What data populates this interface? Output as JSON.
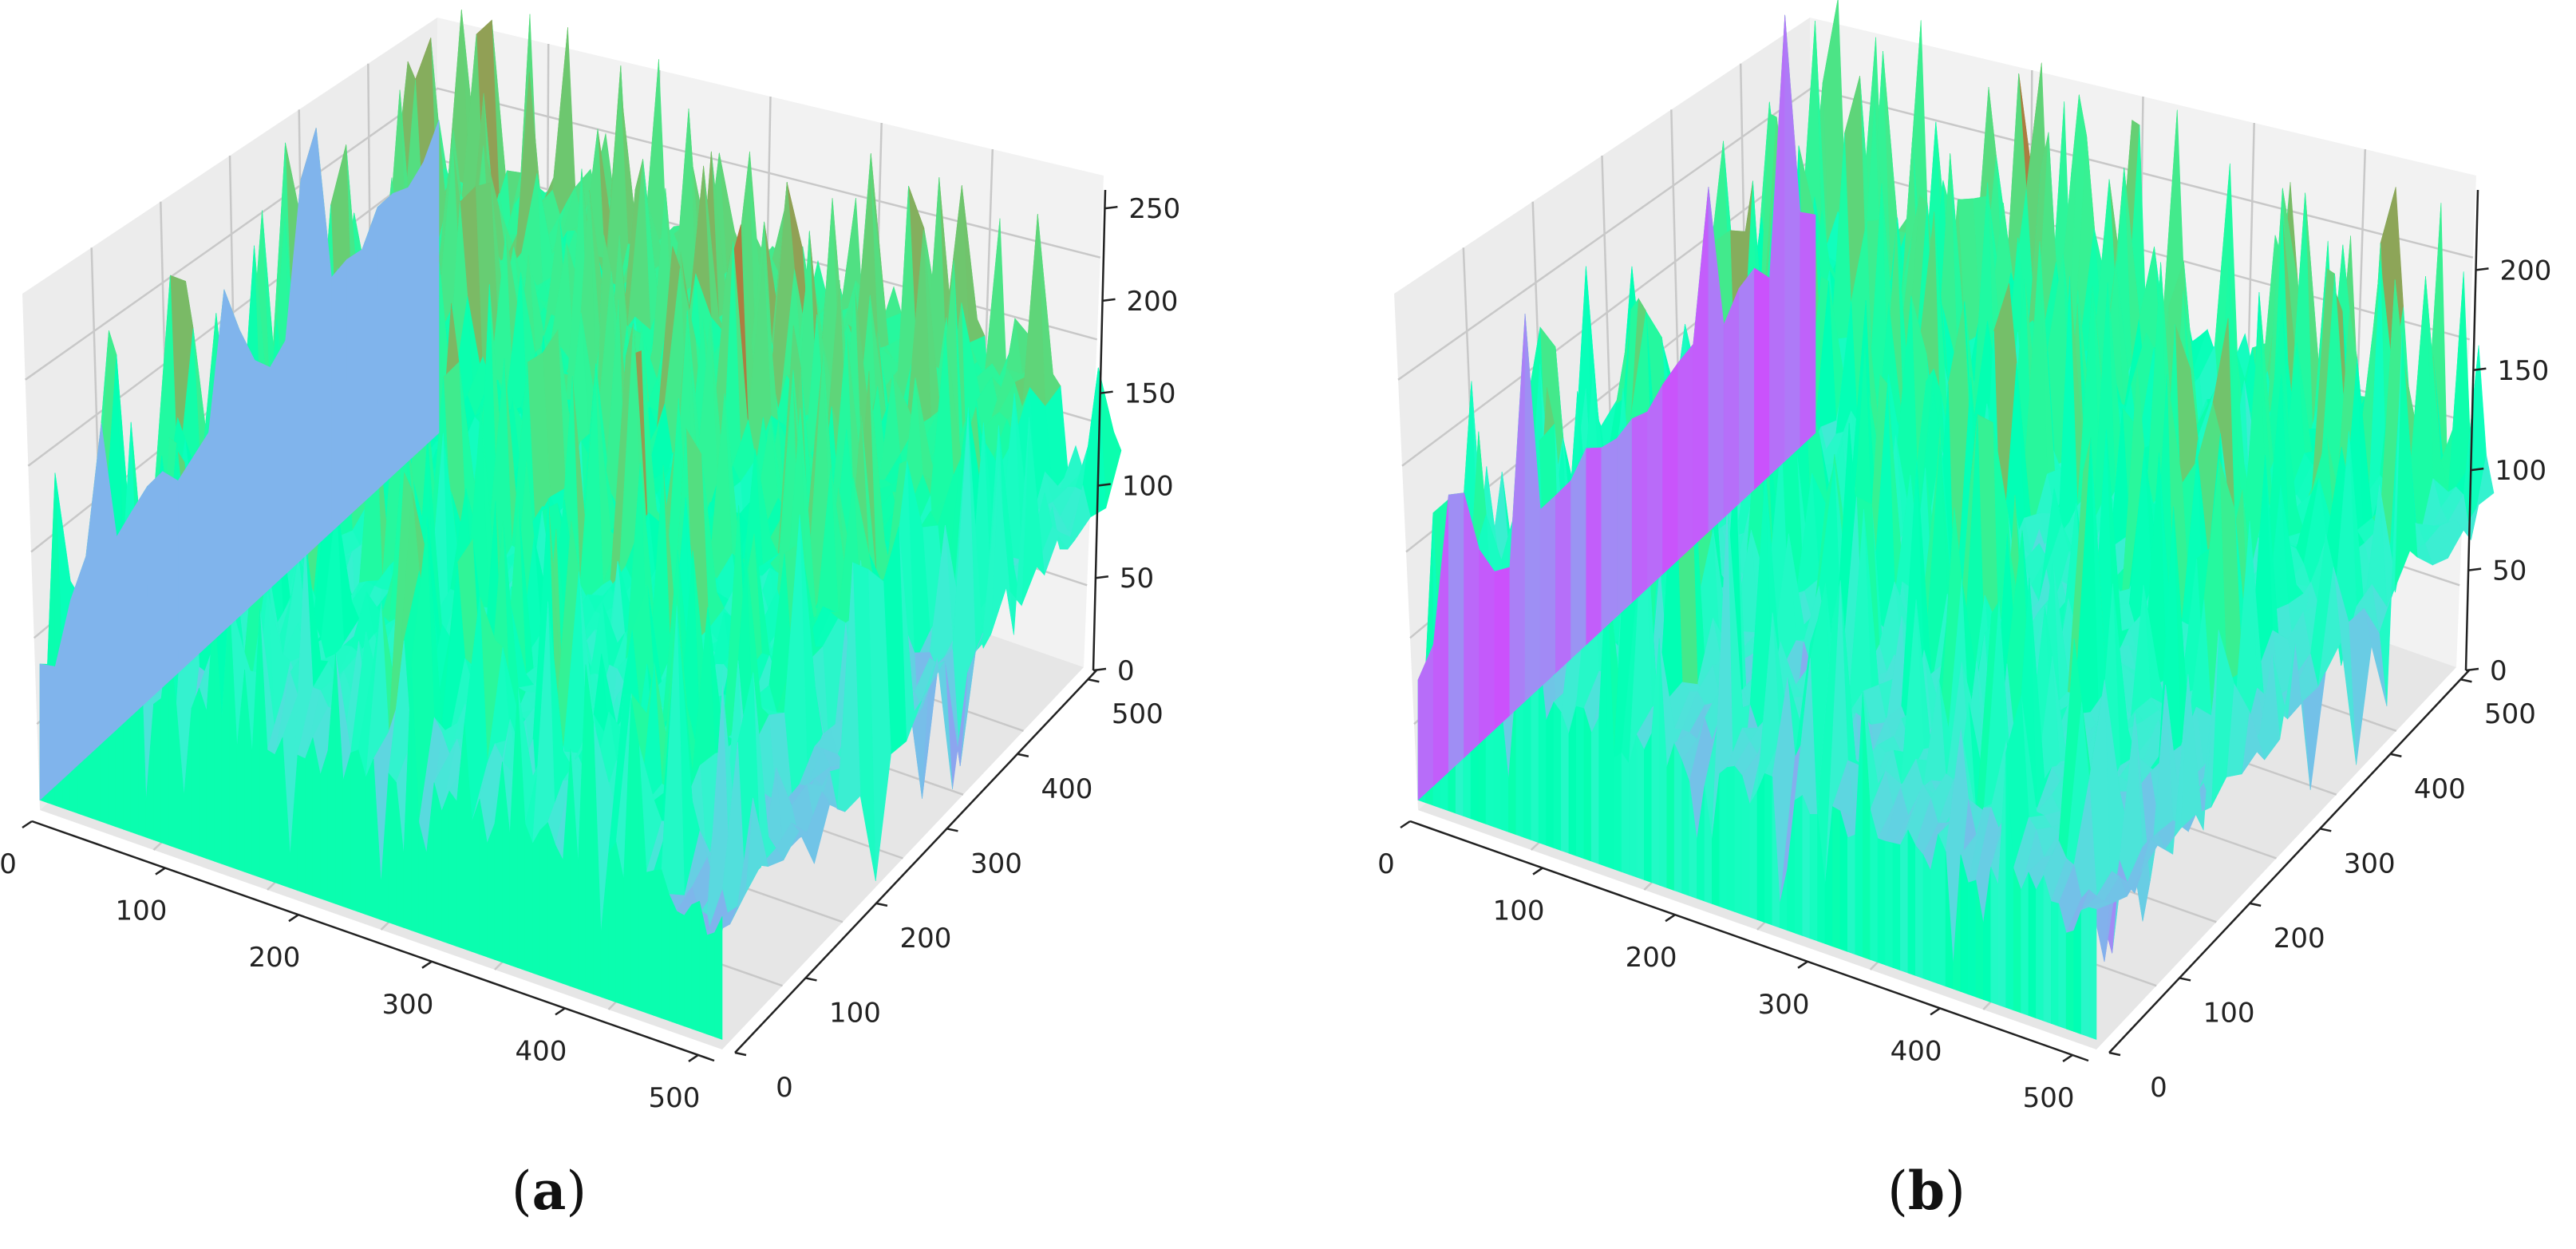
{
  "chart_data": [
    {
      "type": "surface",
      "panel": "a",
      "label_open": "(",
      "label_letter": "a",
      "label_close": ")",
      "x_ticks": [
        0,
        100,
        200,
        300,
        400,
        500
      ],
      "y_ticks": [
        0,
        100,
        200,
        300,
        400,
        500
      ],
      "z_ticks": [
        0,
        50,
        100,
        150,
        200,
        250
      ],
      "xlim": [
        0,
        512
      ],
      "ylim": [
        0,
        512
      ],
      "zlim": [
        0,
        260
      ],
      "colormap": "rainbow",
      "description_values": {
        "baseline_intensity": 100,
        "peak_intensity": 225
      }
    },
    {
      "type": "surface",
      "panel": "b",
      "label_open": "(",
      "label_letter": "b",
      "label_close": ")",
      "x_ticks": [
        0,
        100,
        200,
        300,
        400,
        500
      ],
      "y_ticks": [
        0,
        100,
        200,
        300,
        400,
        500
      ],
      "z_ticks": [
        0,
        50,
        100,
        150,
        200
      ],
      "xlim": [
        0,
        512
      ],
      "ylim": [
        0,
        512
      ],
      "zlim": [
        0,
        240
      ],
      "colormap": "rainbow",
      "description_values": {
        "baseline_intensity": 90,
        "peak_intensity": 225
      }
    }
  ],
  "colors": {
    "pane_light": "#f2f2f2",
    "pane_mid": "#e6e6e6",
    "pane_dark": "#ececec",
    "grid": "#c8c8c8",
    "axis": "#222222"
  }
}
